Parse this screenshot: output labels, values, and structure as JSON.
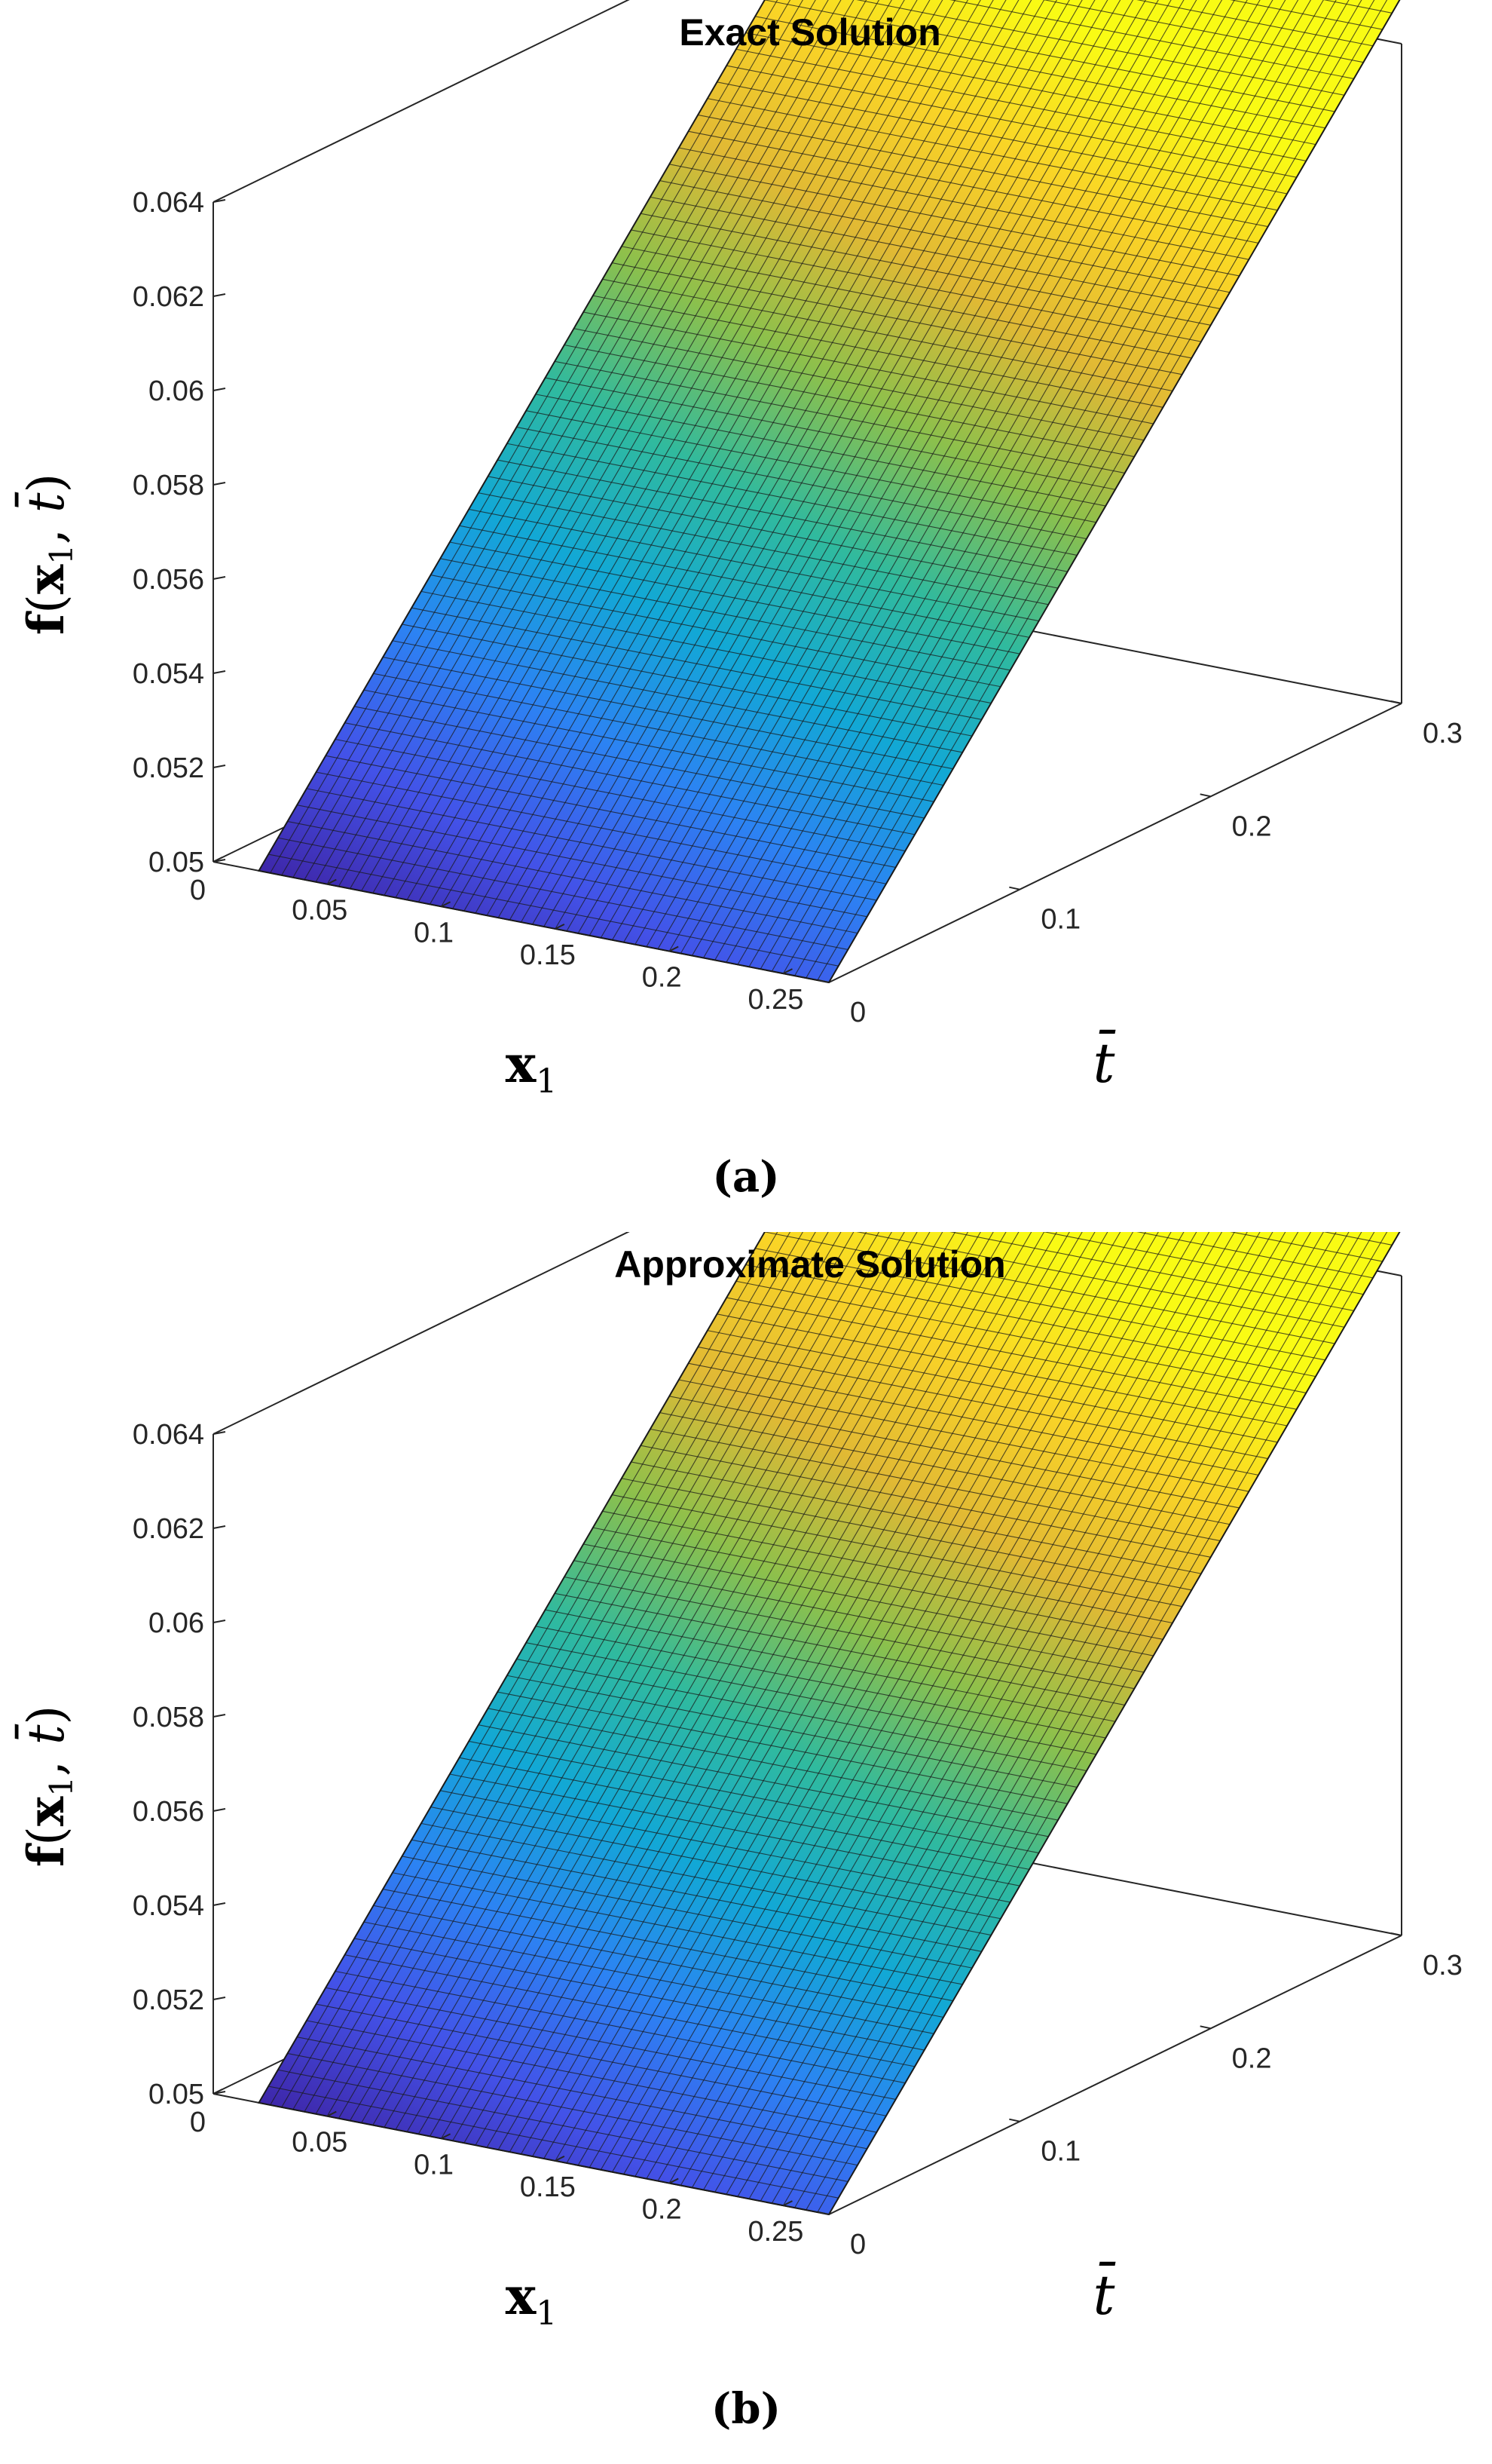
{
  "chart_data": [
    {
      "type": "surface3d",
      "panel_label": "(a)",
      "title": "Exact Solution",
      "xlabel": "x1",
      "ylabel": "t̄",
      "zlabel": "f(x1, t̄)",
      "xlim": [
        0,
        0.27
      ],
      "ylim": [
        0,
        0.3
      ],
      "zlim": [
        0.05,
        0.064
      ],
      "x_ticks": [
        "0",
        "0.05",
        "0.1",
        "0.15",
        "0.2",
        "0.25"
      ],
      "y_ticks": [
        "0",
        "0.1",
        "0.2",
        "0.3"
      ],
      "z_ticks": [
        "0.05",
        "0.052",
        "0.054",
        "0.056",
        "0.058",
        "0.06",
        "0.062",
        "0.064"
      ],
      "colormap": "parula",
      "surface": {
        "z_at_t0": 0.05,
        "z_at_tmax": 0.065,
        "x_range": [
          0.02,
          0.27
        ],
        "t_range": [
          0,
          0.3
        ]
      }
    },
    {
      "type": "surface3d",
      "panel_label": "(b)",
      "title": "Approximate Solution",
      "xlabel": "x1",
      "ylabel": "t̄",
      "zlabel": "f(x1, t̄)",
      "xlim": [
        0,
        0.27
      ],
      "ylim": [
        0,
        0.3
      ],
      "zlim": [
        0.05,
        0.064
      ],
      "x_ticks": [
        "0",
        "0.05",
        "0.1",
        "0.15",
        "0.2",
        "0.25"
      ],
      "y_ticks": [
        "0",
        "0.1",
        "0.2",
        "0.3"
      ],
      "z_ticks": [
        "0.05",
        "0.052",
        "0.054",
        "0.056",
        "0.058",
        "0.06",
        "0.062",
        "0.064"
      ],
      "colormap": "parula",
      "surface": {
        "z_at_t0": 0.05,
        "z_at_tmax": 0.065,
        "x_range": [
          0.02,
          0.27
        ],
        "t_range": [
          0,
          0.3
        ]
      }
    }
  ]
}
